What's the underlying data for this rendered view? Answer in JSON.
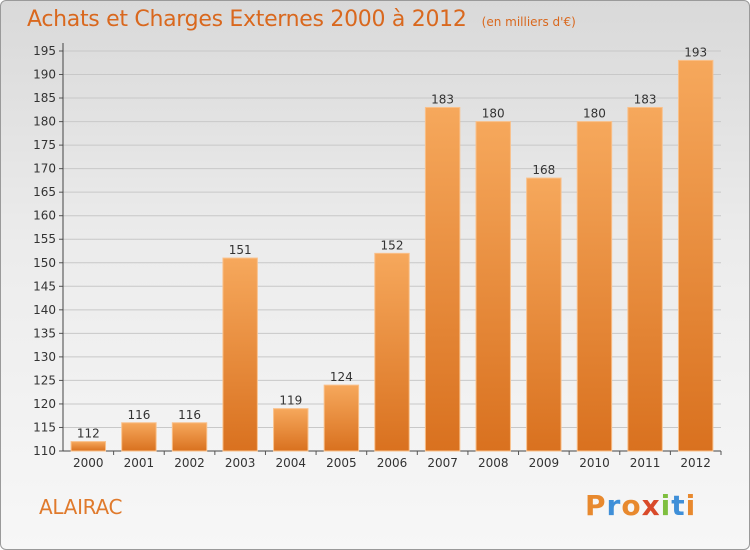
{
  "header": {
    "title": "Achats et Charges Externes 2000 à 2012",
    "subtitle": "(en milliers d'€)"
  },
  "footer": {
    "commune": "ALAIRAC",
    "brand": [
      "P",
      "r",
      "o",
      "x",
      "i",
      "t",
      "i"
    ],
    "brand_colors": [
      "#e8892e",
      "#3f8fd8",
      "#e8892e",
      "#d94a2a",
      "#7fbf3f",
      "#3f8fd8",
      "#e8892e"
    ]
  },
  "colors": {
    "bar_light": "#f6a85c",
    "bar_dark": "#d9711f",
    "accent": "#d9681e"
  },
  "chart_data": {
    "type": "bar",
    "categories": [
      "2000",
      "2001",
      "2002",
      "2003",
      "2004",
      "2005",
      "2006",
      "2007",
      "2008",
      "2009",
      "2010",
      "2011",
      "2012"
    ],
    "values": [
      112,
      116,
      116,
      151,
      119,
      124,
      152,
      183,
      180,
      168,
      180,
      183,
      193
    ],
    "ylim": [
      110,
      195
    ],
    "yticks": [
      110,
      115,
      120,
      125,
      130,
      135,
      140,
      145,
      150,
      155,
      160,
      165,
      170,
      175,
      180,
      185,
      190,
      195
    ],
    "grid": true
  }
}
